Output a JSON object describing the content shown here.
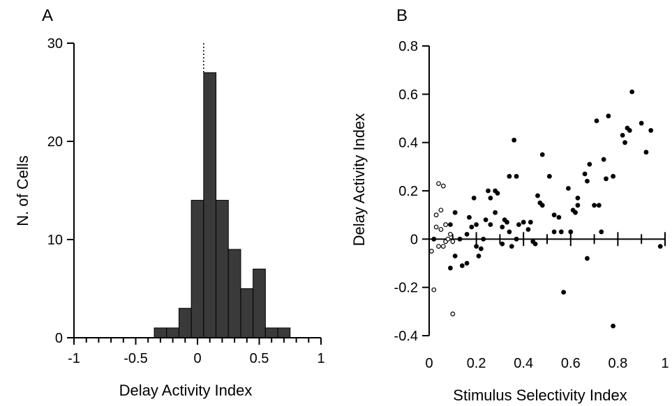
{
  "chart_data": [
    {
      "type": "bar",
      "panel_label": "A",
      "xlabel": "Delay Activity Index",
      "ylabel": "N. of Cells",
      "xlim": [
        -1,
        1
      ],
      "ylim": [
        0,
        30
      ],
      "x_ticks": [
        -1,
        -0.5,
        0,
        0.5,
        1
      ],
      "x_tick_labels": [
        "-1",
        "-0.5",
        "0",
        "0.5",
        "1"
      ],
      "y_ticks": [
        0,
        10,
        20,
        30
      ],
      "y_tick_labels": [
        "0",
        "10",
        "20",
        "30"
      ],
      "bin_width": 0.1,
      "bins": [
        {
          "start": -0.35,
          "end": -0.25,
          "count": 1
        },
        {
          "start": -0.25,
          "end": -0.15,
          "count": 1
        },
        {
          "start": -0.15,
          "end": -0.05,
          "count": 3
        },
        {
          "start": -0.05,
          "end": 0.05,
          "count": 14
        },
        {
          "start": 0.05,
          "end": 0.15,
          "count": 27
        },
        {
          "start": 0.15,
          "end": 0.25,
          "count": 14
        },
        {
          "start": 0.25,
          "end": 0.35,
          "count": 9
        },
        {
          "start": 0.35,
          "end": 0.45,
          "count": 5
        },
        {
          "start": 0.45,
          "end": 0.55,
          "count": 7
        },
        {
          "start": 0.55,
          "end": 0.65,
          "count": 1
        },
        {
          "start": 0.65,
          "end": 0.75,
          "count": 1
        }
      ],
      "reference_line_x": 0.05,
      "grid": false,
      "bar_color": "#3a3a3a"
    },
    {
      "type": "scatter",
      "panel_label": "B",
      "xlabel": "Stimulus Selectivity Index",
      "ylabel": "Delay Activity Index",
      "xlim": [
        0,
        1
      ],
      "ylim": [
        -0.4,
        0.8
      ],
      "x_ticks": [
        0,
        0.2,
        0.4,
        0.6,
        0.8,
        1
      ],
      "x_tick_labels": [
        "0",
        "0.2",
        "0.4",
        "0.6",
        "0.8",
        "1"
      ],
      "y_ticks": [
        -0.4,
        -0.2,
        0,
        0.2,
        0.4,
        0.6,
        0.8
      ],
      "y_tick_labels": [
        "-0.4",
        "-0.2",
        "0",
        "0.2",
        "0.4",
        "0.6",
        "0.8"
      ],
      "grid": false,
      "series": [
        {
          "marker": "filled",
          "color": "#000000",
          "points": [
            [
              0.02,
              0.0
            ],
            [
              0.09,
              0.06
            ],
            [
              0.11,
              0.11
            ],
            [
              0.09,
              -0.12
            ],
            [
              0.11,
              -0.07
            ],
            [
              0.13,
              0.0
            ],
            [
              0.14,
              -0.11
            ],
            [
              0.16,
              -0.1
            ],
            [
              0.16,
              0.02
            ],
            [
              0.17,
              0.09
            ],
            [
              0.18,
              0.05
            ],
            [
              0.19,
              0.17
            ],
            [
              0.2,
              0.06
            ],
            [
              0.2,
              -0.03
            ],
            [
              0.21,
              -0.07
            ],
            [
              0.22,
              -0.04
            ],
            [
              0.23,
              0.0
            ],
            [
              0.24,
              0.08
            ],
            [
              0.25,
              0.2
            ],
            [
              0.26,
              0.06
            ],
            [
              0.26,
              0.17
            ],
            [
              0.28,
              0.2
            ],
            [
              0.28,
              0.11
            ],
            [
              0.29,
              0.19
            ],
            [
              0.31,
              -0.02
            ],
            [
              0.31,
              0.05
            ],
            [
              0.32,
              0.08
            ],
            [
              0.33,
              0.07
            ],
            [
              0.34,
              0.03
            ],
            [
              0.34,
              0.26
            ],
            [
              0.35,
              -0.03
            ],
            [
              0.36,
              0.41
            ],
            [
              0.37,
              0.0
            ],
            [
              0.37,
              0.26
            ],
            [
              0.38,
              0.06
            ],
            [
              0.4,
              0.07
            ],
            [
              0.42,
              0.04
            ],
            [
              0.43,
              0.07
            ],
            [
              0.44,
              -0.01
            ],
            [
              0.45,
              -0.02
            ],
            [
              0.46,
              0.18
            ],
            [
              0.47,
              0.15
            ],
            [
              0.48,
              0.14
            ],
            [
              0.48,
              0.35
            ],
            [
              0.51,
              0.26
            ],
            [
              0.53,
              0.1
            ],
            [
              0.53,
              0.03
            ],
            [
              0.55,
              0.09
            ],
            [
              0.56,
              0.03
            ],
            [
              0.57,
              -0.22
            ],
            [
              0.59,
              0.21
            ],
            [
              0.6,
              0.03
            ],
            [
              0.61,
              0.12
            ],
            [
              0.62,
              0.11
            ],
            [
              0.63,
              0.17
            ],
            [
              0.63,
              0.14
            ],
            [
              0.66,
              0.27
            ],
            [
              0.67,
              -0.08
            ],
            [
              0.67,
              0.24
            ],
            [
              0.68,
              0.31
            ],
            [
              0.7,
              0.14
            ],
            [
              0.71,
              0.49
            ],
            [
              0.72,
              0.14
            ],
            [
              0.73,
              0.03
            ],
            [
              0.74,
              0.33
            ],
            [
              0.75,
              0.25
            ],
            [
              0.76,
              0.51
            ],
            [
              0.78,
              0.26
            ],
            [
              0.78,
              -0.36
            ],
            [
              0.82,
              0.43
            ],
            [
              0.83,
              0.4
            ],
            [
              0.84,
              0.46
            ],
            [
              0.85,
              0.45
            ],
            [
              0.86,
              0.61
            ],
            [
              0.9,
              0.48
            ],
            [
              0.92,
              0.36
            ],
            [
              0.94,
              0.45
            ],
            [
              0.98,
              -0.03
            ]
          ]
        },
        {
          "marker": "open",
          "color": "#000000",
          "points": [
            [
              0.01,
              -0.05
            ],
            [
              0.02,
              -0.21
            ],
            [
              0.03,
              0.1
            ],
            [
              0.03,
              0.05
            ],
            [
              0.04,
              -0.03
            ],
            [
              0.04,
              0.23
            ],
            [
              0.05,
              0.12
            ],
            [
              0.05,
              0.04
            ],
            [
              0.06,
              0.22
            ],
            [
              0.06,
              -0.03
            ],
            [
              0.07,
              -0.01
            ],
            [
              0.07,
              0.06
            ],
            [
              0.08,
              0.0
            ],
            [
              0.09,
              0.02
            ],
            [
              0.1,
              -0.31
            ],
            [
              0.1,
              -0.01
            ]
          ]
        }
      ]
    }
  ]
}
